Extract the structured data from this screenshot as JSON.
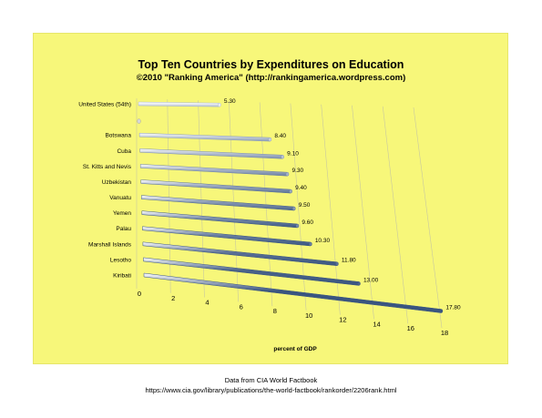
{
  "chart_data": {
    "type": "bar",
    "orientation": "horizontal",
    "style": "3d",
    "title": "Top Ten Countries by Expenditures on Education",
    "subtitle": "©2010 \"Ranking America\" (http://rankingamerica.wordpress.com)",
    "xlabel": "percent of GDP",
    "ylabel": "",
    "xlim": [
      0,
      18
    ],
    "xticks": [
      0,
      2,
      4,
      6,
      8,
      10,
      12,
      14,
      16,
      18
    ],
    "grid": true,
    "categories": [
      "United States (54th)",
      "",
      "Botswana",
      "Cuba",
      "St. Kitts and Nevis",
      "Uzbekistan",
      "Vanuatu",
      "Yemen",
      "Palau",
      "Marshall Islands",
      "Lesotho",
      "Kiribati"
    ],
    "values": [
      5.3,
      null,
      8.4,
      9.1,
      9.3,
      9.4,
      9.5,
      9.6,
      10.3,
      11.8,
      13.0,
      17.8
    ],
    "value_labels": [
      "5.30",
      "",
      "8.40",
      "9.10",
      "9.30",
      "9.40",
      "9.50",
      "9.60",
      "10.30",
      "11.80",
      "13.00",
      "17.80"
    ],
    "colors": {
      "background": "#f7f77a",
      "bar_light": "#e8ecf3",
      "bar_dark": "#3a5580",
      "grid": "#c8c8a0"
    }
  },
  "footer": {
    "line1": "Data from CIA World Factbook",
    "line2": "https://www.cia.gov/library/publications/the-world-factbook/rankorder/2206rank.html"
  }
}
